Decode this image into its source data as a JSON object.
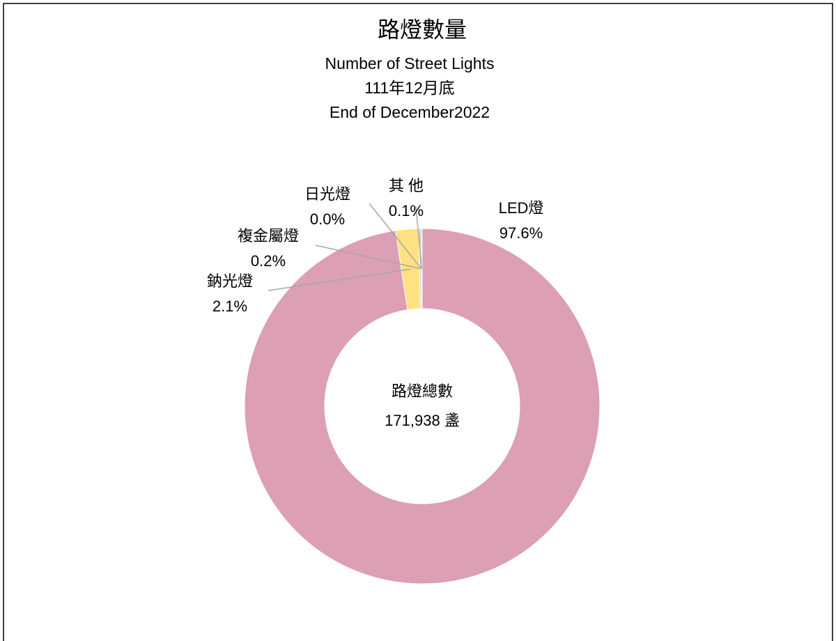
{
  "chart_data": {
    "type": "pie",
    "donut": true,
    "title": "路燈數量",
    "subtitle": [
      "Number of Street Lights",
      "111年12月底",
      "End of December2022"
    ],
    "categories": [
      "LED燈",
      "鈉光燈",
      "複金屬燈",
      "日光燈",
      "其 他"
    ],
    "values": [
      97.6,
      2.1,
      0.2,
      0.0,
      0.1
    ],
    "value_labels": [
      "97.6%",
      "2.1%",
      "0.2%",
      "0.0%",
      "0.1%"
    ],
    "colors": [
      "#dc9fb4",
      "#ffe083",
      "#c9c9c9",
      "#ffffff",
      "#a9d18e"
    ],
    "center_text": [
      "路燈總數",
      "171,938 盞"
    ]
  }
}
